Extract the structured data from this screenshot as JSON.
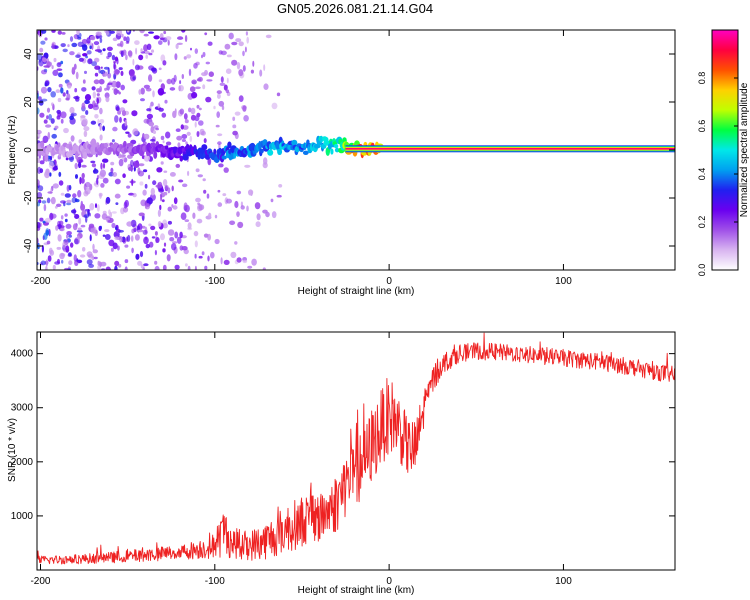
{
  "figure": {
    "title": "GN05.2026.081.21.14.G04"
  },
  "chart_data": [
    {
      "type": "heatmap",
      "xlabel": "Height of straight line (km)",
      "ylabel": "Frequency (Hz)",
      "xlim": [
        -202,
        164
      ],
      "ylim": [
        -50,
        50
      ],
      "xticks": [
        -200,
        -100,
        0,
        100
      ],
      "xtick_labels": [
        "-200",
        "-100",
        "0",
        "100"
      ],
      "yticks": [
        -40,
        -20,
        0,
        20,
        40
      ],
      "ytick_labels": [
        "-40",
        "-20",
        "0",
        "20",
        "40"
      ],
      "colormap": [
        "#ffffff",
        "#d8b4f0",
        "#a050e8",
        "#6a00f0",
        "#2020f0",
        "#00a0f0",
        "#00e8e8",
        "#00ff40",
        "#c0ff00",
        "#ffd000",
        "#ff5000",
        "#ff0040",
        "#ff00c0"
      ],
      "ridge": {
        "x": [
          -180,
          -160,
          -140,
          -120,
          -100,
          -90,
          -80,
          -70,
          -60,
          -50,
          -40,
          -30,
          -20,
          -10,
          0,
          20,
          60,
          100,
          164
        ],
        "y": [
          0,
          0.5,
          0,
          -0.5,
          -2,
          -1,
          0,
          1,
          2,
          1,
          3,
          2,
          0.5,
          0.5,
          0.5,
          0.5,
          0.5,
          0.5,
          0.5
        ],
        "amplitude": [
          0.12,
          0.15,
          0.2,
          0.28,
          0.35,
          0.4,
          0.42,
          0.45,
          0.45,
          0.42,
          0.5,
          0.55,
          0.8,
          0.85,
          0.95,
          0.98,
          0.98,
          0.98,
          0.98
        ]
      },
      "colorbar": {
        "label": "Normalized spectral amplitude",
        "range": [
          0,
          1
        ],
        "ticks": [
          0.0,
          0.2,
          0.4,
          0.6,
          0.8
        ],
        "tick_labels": [
          "0.0",
          "0.2",
          "0.4",
          "0.6",
          "0.8"
        ]
      }
    },
    {
      "type": "line",
      "xlabel": "Height of straight line (km)",
      "ylabel": "SNR (10 * v/v)",
      "xlim": [
        -202,
        164
      ],
      "ylim": [
        0,
        4400
      ],
      "xticks": [
        -200,
        -100,
        0,
        100
      ],
      "xtick_labels": [
        "-200",
        "-100",
        "0",
        "100"
      ],
      "yticks": [
        1000,
        2000,
        3000,
        4000
      ],
      "ytick_labels": [
        "1000",
        "2000",
        "3000",
        "4000"
      ],
      "color": "#ee2222",
      "series": [
        {
          "name": "SNR",
          "x": [
            -202,
            -180,
            -160,
            -140,
            -120,
            -110,
            -100,
            -95,
            -90,
            -80,
            -70,
            -60,
            -50,
            -45,
            -40,
            -30,
            -25,
            -20,
            -15,
            -10,
            -5,
            0,
            5,
            10,
            15,
            20,
            25,
            30,
            40,
            50,
            60,
            80,
            100,
            120,
            140,
            164
          ],
          "y": [
            180,
            200,
            230,
            280,
            330,
            380,
            450,
            700,
            500,
            450,
            550,
            750,
            900,
            1000,
            950,
            1250,
            1600,
            1800,
            1950,
            2300,
            2600,
            2900,
            2700,
            2300,
            2200,
            3000,
            3500,
            3800,
            4000,
            4050,
            4030,
            3980,
            3920,
            3850,
            3750,
            3600
          ],
          "noise": [
            100,
            110,
            130,
            150,
            180,
            220,
            300,
            600,
            350,
            350,
            450,
            550,
            600,
            600,
            600,
            700,
            800,
            800,
            800,
            900,
            900,
            900,
            800,
            700,
            700,
            500,
            350,
            260,
            200,
            200,
            200,
            200,
            200,
            200,
            200,
            200
          ]
        }
      ]
    }
  ]
}
